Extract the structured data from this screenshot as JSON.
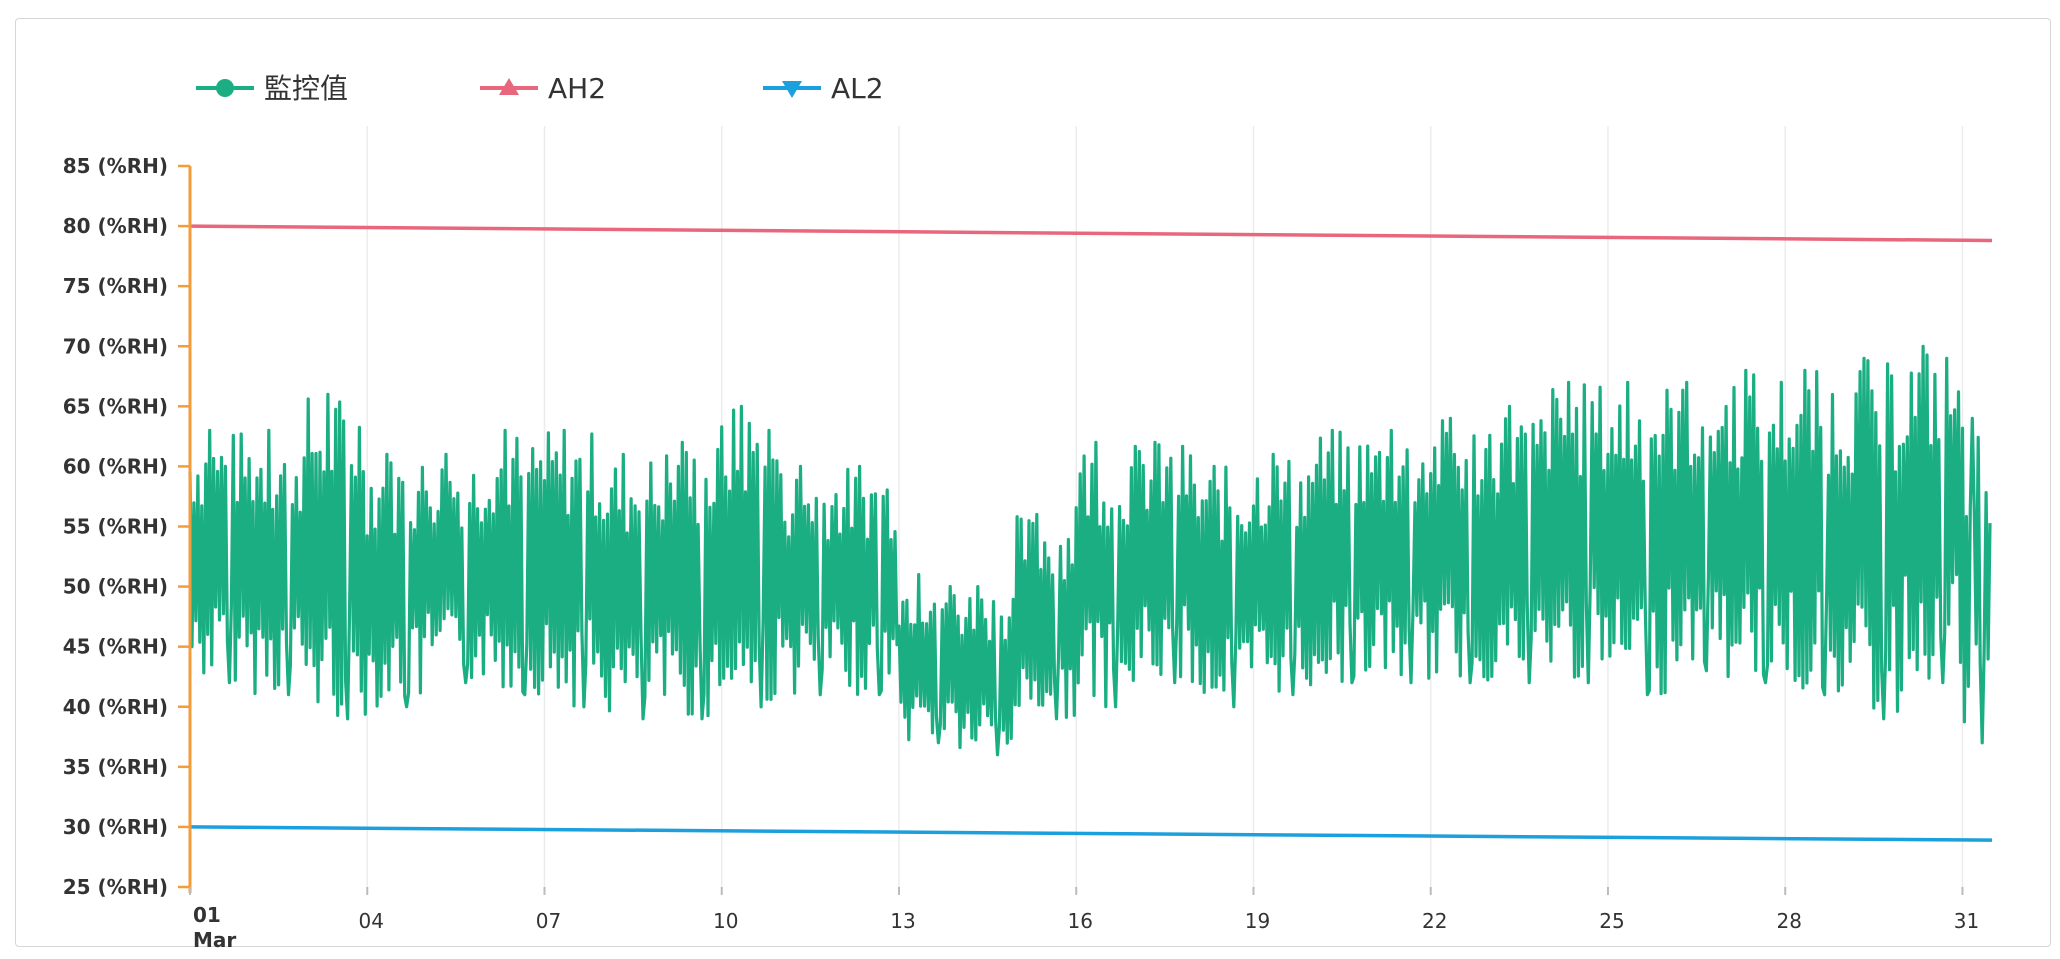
{
  "chart_data": {
    "type": "line",
    "title": "",
    "xlabel": "",
    "ylabel": "",
    "ylim": [
      25,
      85
    ],
    "y_ticks": [
      85,
      80,
      75,
      70,
      65,
      60,
      55,
      50,
      45,
      40,
      35,
      30,
      25
    ],
    "y_tick_labels": [
      "85 (%RH)",
      "80 (%RH)",
      "75 (%RH)",
      "70 (%RH)",
      "65 (%RH)",
      "60 (%RH)",
      "55 (%RH)",
      "50 (%RH)",
      "45 (%RH)",
      "40 (%RH)",
      "35 (%RH)",
      "30 (%RH)",
      "25 (%RH)"
    ],
    "xlim": [
      "2024-03-01",
      "2024-03-31T12:00"
    ],
    "x_ticks": [
      "01",
      "04",
      "07",
      "10",
      "13",
      "16",
      "19",
      "22",
      "25",
      "28",
      "31"
    ],
    "x_tick_days": [
      1,
      4,
      7,
      10,
      13,
      16,
      19,
      22,
      25,
      28,
      31
    ],
    "x_month_label": "Mar",
    "grid": "vertical",
    "legend": {
      "placement": "top-left",
      "entries": [
        "監控值",
        "AH2",
        "AL2"
      ]
    },
    "series": [
      {
        "name": "監控值",
        "color": "#1aae82",
        "marker": "circle",
        "daily_envelope": [
          {
            "day": 1,
            "min": 42,
            "max": 63
          },
          {
            "day": 2,
            "min": 41,
            "max": 63
          },
          {
            "day": 3,
            "min": 39,
            "max": 66
          },
          {
            "day": 4,
            "min": 40,
            "max": 61
          },
          {
            "day": 5,
            "min": 42,
            "max": 61
          },
          {
            "day": 6,
            "min": 41,
            "max": 63
          },
          {
            "day": 7,
            "min": 40,
            "max": 63
          },
          {
            "day": 8,
            "min": 39,
            "max": 61
          },
          {
            "day": 9,
            "min": 39,
            "max": 62
          },
          {
            "day": 10,
            "min": 40,
            "max": 65
          },
          {
            "day": 11,
            "min": 41,
            "max": 60
          },
          {
            "day": 12,
            "min": 41,
            "max": 60
          },
          {
            "day": 13,
            "min": 37,
            "max": 51
          },
          {
            "day": 14,
            "min": 36,
            "max": 50
          },
          {
            "day": 15,
            "min": 39,
            "max": 56
          },
          {
            "day": 16,
            "min": 40,
            "max": 62
          },
          {
            "day": 17,
            "min": 42,
            "max": 62
          },
          {
            "day": 18,
            "min": 40,
            "max": 60
          },
          {
            "day": 19,
            "min": 41,
            "max": 61
          },
          {
            "day": 20,
            "min": 42,
            "max": 63
          },
          {
            "day": 21,
            "min": 42,
            "max": 63
          },
          {
            "day": 22,
            "min": 42,
            "max": 64
          },
          {
            "day": 23,
            "min": 42,
            "max": 65
          },
          {
            "day": 24,
            "min": 42,
            "max": 67
          },
          {
            "day": 25,
            "min": 41,
            "max": 67
          },
          {
            "day": 26,
            "min": 43,
            "max": 67
          },
          {
            "day": 27,
            "min": 42,
            "max": 68
          },
          {
            "day": 28,
            "min": 41,
            "max": 68
          },
          {
            "day": 29,
            "min": 39,
            "max": 69
          },
          {
            "day": 30,
            "min": 42,
            "max": 70
          },
          {
            "day": 31,
            "min": 37,
            "max": 64
          }
        ]
      },
      {
        "name": "AH2",
        "color": "#e8677c",
        "marker": "triangle-up",
        "x": [
          "2024-03-01",
          "2024-03-31T12:00"
        ],
        "y": [
          80,
          78.8
        ]
      },
      {
        "name": "AL2",
        "color": "#1b9fdd",
        "marker": "triangle-down",
        "x": [
          "2024-03-01",
          "2024-03-31T12:00"
        ],
        "y": [
          30,
          28.9
        ]
      }
    ],
    "axis_color": "#f39c3a"
  }
}
